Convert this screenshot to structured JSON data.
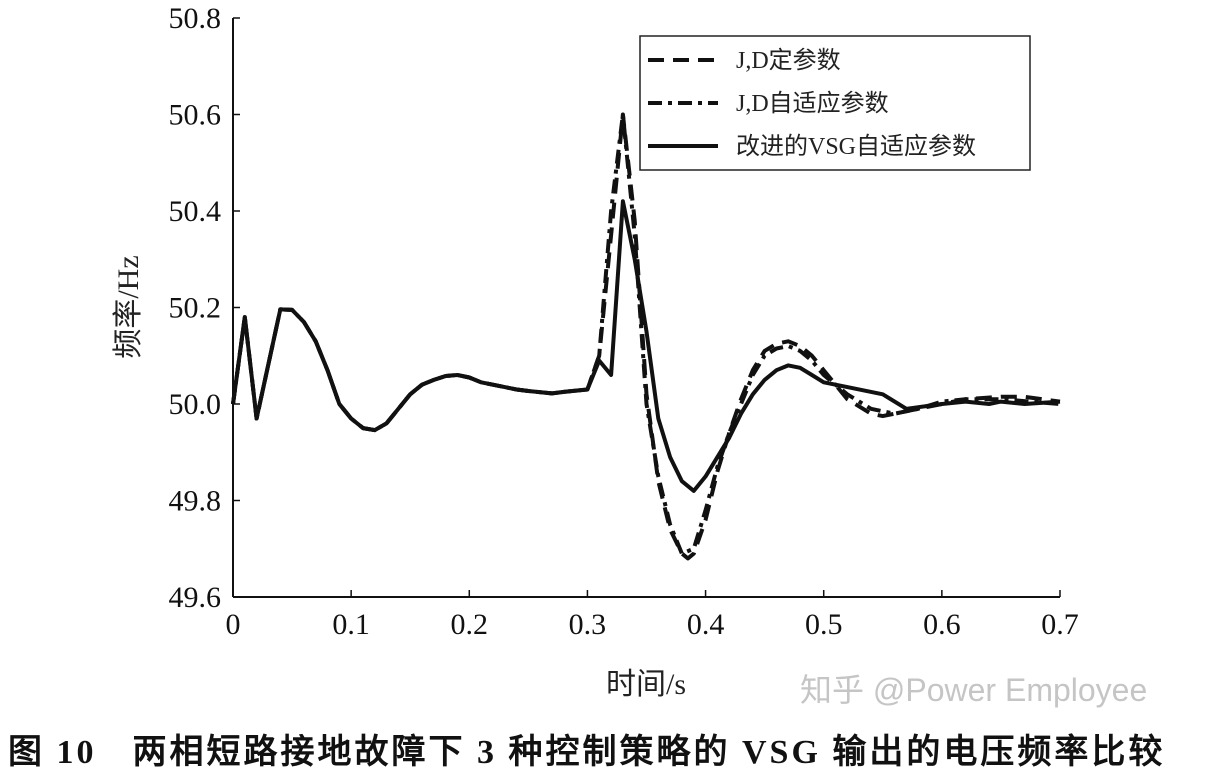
{
  "chart_data": {
    "type": "line",
    "title": "",
    "xlabel": "时间/s",
    "ylabel": "频率/Hz",
    "xlim": [
      0,
      0.7
    ],
    "ylim": [
      49.6,
      50.8
    ],
    "xticks": [
      "0",
      "0.1",
      "0.2",
      "0.3",
      "0.4",
      "0.5",
      "0.6",
      "0.7"
    ],
    "yticks": [
      "49.6",
      "49.8",
      "50.0",
      "50.2",
      "50.4",
      "50.6",
      "50.8"
    ],
    "grid": false,
    "legend_position": "top-right",
    "series": [
      {
        "name": "J,D定参数",
        "style": "dashed",
        "x": [
          0,
          0.01,
          0.02,
          0.04,
          0.05,
          0.06,
          0.07,
          0.08,
          0.09,
          0.1,
          0.11,
          0.12,
          0.13,
          0.14,
          0.15,
          0.16,
          0.17,
          0.18,
          0.19,
          0.2,
          0.21,
          0.22,
          0.23,
          0.24,
          0.25,
          0.27,
          0.28,
          0.3,
          0.31,
          0.32,
          0.33,
          0.34,
          0.35,
          0.36,
          0.37,
          0.38,
          0.385,
          0.39,
          0.4,
          0.41,
          0.42,
          0.43,
          0.44,
          0.45,
          0.46,
          0.47,
          0.48,
          0.49,
          0.5,
          0.52,
          0.54,
          0.55,
          0.57,
          0.6,
          0.62,
          0.65,
          0.67,
          0.7
        ],
        "y": [
          50.0,
          50.18,
          49.97,
          50.196,
          50.195,
          50.17,
          50.13,
          50.07,
          50.0,
          49.97,
          49.95,
          49.946,
          49.96,
          49.99,
          50.02,
          50.04,
          50.05,
          50.058,
          50.06,
          50.055,
          50.045,
          50.04,
          50.035,
          50.03,
          50.027,
          50.022,
          50.025,
          50.03,
          50.1,
          50.35,
          50.6,
          50.38,
          50.02,
          49.84,
          49.74,
          49.69,
          49.68,
          49.69,
          49.76,
          49.86,
          49.94,
          50.01,
          50.07,
          50.11,
          50.125,
          50.13,
          50.12,
          50.1,
          50.07,
          50.01,
          49.98,
          49.975,
          49.985,
          50.0,
          50.01,
          50.015,
          50.015,
          50.005
        ]
      },
      {
        "name": "J,D自适应参数",
        "style": "dashdot",
        "x": [
          0,
          0.01,
          0.02,
          0.04,
          0.05,
          0.06,
          0.07,
          0.08,
          0.09,
          0.1,
          0.11,
          0.12,
          0.13,
          0.14,
          0.15,
          0.16,
          0.17,
          0.18,
          0.19,
          0.2,
          0.21,
          0.22,
          0.23,
          0.24,
          0.25,
          0.27,
          0.28,
          0.3,
          0.31,
          0.32,
          0.33,
          0.34,
          0.35,
          0.36,
          0.37,
          0.38,
          0.39,
          0.4,
          0.41,
          0.42,
          0.43,
          0.44,
          0.45,
          0.46,
          0.47,
          0.48,
          0.49,
          0.5,
          0.52,
          0.54,
          0.56,
          0.58,
          0.6,
          0.62,
          0.65,
          0.7
        ],
        "y": [
          50.0,
          50.18,
          49.97,
          50.196,
          50.195,
          50.17,
          50.13,
          50.07,
          50.0,
          49.97,
          49.95,
          49.946,
          49.96,
          49.99,
          50.02,
          50.04,
          50.05,
          50.058,
          50.06,
          50.055,
          50.045,
          50.04,
          50.035,
          50.03,
          50.027,
          50.022,
          50.025,
          50.03,
          50.1,
          50.4,
          50.6,
          50.35,
          50.0,
          49.85,
          49.75,
          49.69,
          49.7,
          49.78,
          49.87,
          49.94,
          50.0,
          50.06,
          50.1,
          50.115,
          50.12,
          50.11,
          50.09,
          50.06,
          50.02,
          49.99,
          49.98,
          49.99,
          50.005,
          50.01,
          50.01,
          50.0
        ]
      },
      {
        "name": "改进的VSG自适应参数",
        "style": "solid",
        "x": [
          0,
          0.01,
          0.02,
          0.04,
          0.05,
          0.06,
          0.07,
          0.08,
          0.09,
          0.1,
          0.11,
          0.12,
          0.13,
          0.14,
          0.15,
          0.16,
          0.17,
          0.18,
          0.19,
          0.2,
          0.21,
          0.22,
          0.23,
          0.24,
          0.25,
          0.27,
          0.28,
          0.3,
          0.31,
          0.32,
          0.33,
          0.34,
          0.35,
          0.36,
          0.37,
          0.38,
          0.39,
          0.4,
          0.41,
          0.42,
          0.43,
          0.44,
          0.45,
          0.46,
          0.47,
          0.48,
          0.49,
          0.5,
          0.52,
          0.55,
          0.57,
          0.6,
          0.62,
          0.64,
          0.65,
          0.67,
          0.7
        ],
        "y": [
          50.0,
          50.18,
          49.97,
          50.196,
          50.195,
          50.17,
          50.13,
          50.07,
          50.0,
          49.97,
          49.95,
          49.946,
          49.96,
          49.99,
          50.02,
          50.04,
          50.05,
          50.058,
          50.06,
          50.055,
          50.045,
          50.04,
          50.035,
          50.03,
          50.027,
          50.022,
          50.025,
          50.03,
          50.09,
          50.06,
          50.42,
          50.3,
          50.15,
          49.97,
          49.89,
          49.84,
          49.82,
          49.85,
          49.89,
          49.93,
          49.98,
          50.02,
          50.05,
          50.07,
          50.08,
          50.075,
          50.06,
          50.045,
          50.035,
          50.02,
          49.99,
          50.0,
          50.005,
          50.0,
          50.005,
          50.0,
          50.005
        ]
      }
    ]
  },
  "caption": {
    "label": "图 10",
    "text": "两相短路接地故障下 3 种控制策略的 VSG 输出的电压频率比较"
  },
  "watermark": "知乎 @Power Employee"
}
